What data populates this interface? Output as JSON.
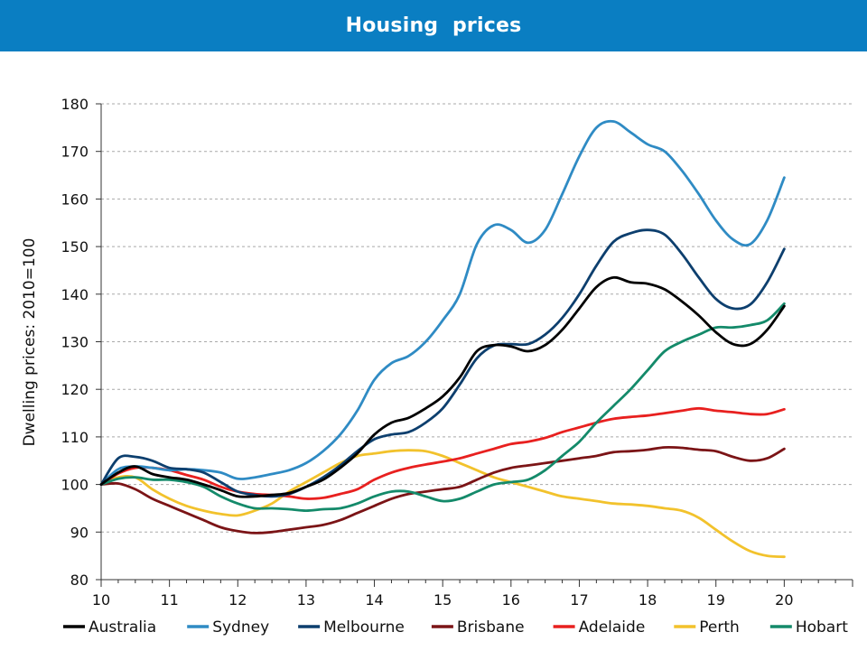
{
  "header": {
    "title": "Housing  prices"
  },
  "chart_data": {
    "type": "line",
    "title": "Housing  prices",
    "xlabel": "",
    "ylabel": "Dwelling prices: 2010=100",
    "xlim": [
      10,
      21
    ],
    "ylim": [
      80,
      180
    ],
    "x_ticks": [
      10,
      11,
      12,
      13,
      14,
      15,
      16,
      17,
      18,
      19,
      20
    ],
    "y_ticks": [
      80,
      90,
      100,
      110,
      120,
      130,
      140,
      150,
      160,
      170,
      180
    ],
    "grid": "horizontal dashed",
    "legend_position": "bottom",
    "series": [
      {
        "name": "Australia",
        "color": "#000000",
        "points": [
          [
            10,
            100
          ],
          [
            10.25,
            102.5
          ],
          [
            10.5,
            103.8
          ],
          [
            10.75,
            102.2
          ],
          [
            11,
            101.5
          ],
          [
            11.25,
            101
          ],
          [
            11.5,
            100
          ],
          [
            11.75,
            98.8
          ],
          [
            12,
            97.5
          ],
          [
            12.25,
            97.5
          ],
          [
            12.5,
            97.8
          ],
          [
            12.75,
            98.2
          ],
          [
            13,
            99.5
          ],
          [
            13.25,
            101
          ],
          [
            13.5,
            103.5
          ],
          [
            13.75,
            106.5
          ],
          [
            14,
            110.5
          ],
          [
            14.25,
            113
          ],
          [
            14.5,
            114
          ],
          [
            14.75,
            116
          ],
          [
            15,
            118.5
          ],
          [
            15.25,
            122.5
          ],
          [
            15.5,
            128
          ],
          [
            15.75,
            129.3
          ],
          [
            16,
            129
          ],
          [
            16.25,
            128
          ],
          [
            16.5,
            129.3
          ],
          [
            16.75,
            132.5
          ],
          [
            17,
            137
          ],
          [
            17.25,
            141.5
          ],
          [
            17.5,
            143.5
          ],
          [
            17.75,
            142.5
          ],
          [
            18,
            142.2
          ],
          [
            18.25,
            141
          ],
          [
            18.5,
            138.5
          ],
          [
            18.75,
            135.5
          ],
          [
            19,
            132
          ],
          [
            19.25,
            129.5
          ],
          [
            19.5,
            129.5
          ],
          [
            19.75,
            132.5
          ],
          [
            20,
            137.5
          ]
        ]
      },
      {
        "name": "Sydney",
        "color": "#2f8bc4",
        "points": [
          [
            10,
            100
          ],
          [
            10.25,
            103.2
          ],
          [
            10.5,
            103.8
          ],
          [
            10.75,
            103.5
          ],
          [
            11,
            103
          ],
          [
            11.25,
            103.2
          ],
          [
            11.5,
            103
          ],
          [
            11.75,
            102.5
          ],
          [
            12,
            101.2
          ],
          [
            12.25,
            101.5
          ],
          [
            12.5,
            102.2
          ],
          [
            12.75,
            103
          ],
          [
            13,
            104.5
          ],
          [
            13.25,
            107
          ],
          [
            13.5,
            110.5
          ],
          [
            13.75,
            115.5
          ],
          [
            14,
            122
          ],
          [
            14.25,
            125.5
          ],
          [
            14.5,
            127
          ],
          [
            14.75,
            130
          ],
          [
            15,
            134.5
          ],
          [
            15.25,
            140
          ],
          [
            15.5,
            150.5
          ],
          [
            15.75,
            154.5
          ],
          [
            16,
            153.5
          ],
          [
            16.25,
            150.8
          ],
          [
            16.5,
            153.5
          ],
          [
            16.75,
            161
          ],
          [
            17,
            169
          ],
          [
            17.25,
            175
          ],
          [
            17.5,
            176.3
          ],
          [
            17.75,
            174
          ],
          [
            18,
            171.5
          ],
          [
            18.25,
            170
          ],
          [
            18.5,
            166
          ],
          [
            18.75,
            161
          ],
          [
            19,
            155.5
          ],
          [
            19.25,
            151.5
          ],
          [
            19.5,
            150.5
          ],
          [
            19.75,
            155.5
          ],
          [
            20,
            164.5
          ]
        ]
      },
      {
        "name": "Melbourne",
        "color": "#0d3f6e",
        "points": [
          [
            10,
            100
          ],
          [
            10.25,
            105.5
          ],
          [
            10.5,
            105.8
          ],
          [
            10.75,
            105
          ],
          [
            11,
            103.5
          ],
          [
            11.25,
            103.2
          ],
          [
            11.5,
            102.5
          ],
          [
            11.75,
            100.5
          ],
          [
            12,
            98.5
          ],
          [
            12.25,
            97.8
          ],
          [
            12.5,
            97.5
          ],
          [
            12.75,
            98
          ],
          [
            13,
            99.5
          ],
          [
            13.25,
            101.5
          ],
          [
            13.5,
            104
          ],
          [
            13.75,
            107
          ],
          [
            14,
            109.5
          ],
          [
            14.25,
            110.5
          ],
          [
            14.5,
            111
          ],
          [
            14.75,
            113
          ],
          [
            15,
            116
          ],
          [
            15.25,
            121
          ],
          [
            15.5,
            126.5
          ],
          [
            15.75,
            129.2
          ],
          [
            16,
            129.5
          ],
          [
            16.25,
            129.5
          ],
          [
            16.5,
            131.5
          ],
          [
            16.75,
            135
          ],
          [
            17,
            140
          ],
          [
            17.25,
            146
          ],
          [
            17.5,
            151
          ],
          [
            17.75,
            152.8
          ],
          [
            18,
            153.5
          ],
          [
            18.25,
            152.5
          ],
          [
            18.5,
            148.5
          ],
          [
            18.75,
            143.5
          ],
          [
            19,
            139
          ],
          [
            19.25,
            137
          ],
          [
            19.5,
            137.8
          ],
          [
            19.75,
            142.5
          ],
          [
            20,
            149.5
          ]
        ]
      },
      {
        "name": "Brisbane",
        "color": "#7b1416",
        "points": [
          [
            10,
            100
          ],
          [
            10.25,
            100.2
          ],
          [
            10.5,
            99
          ],
          [
            10.75,
            97
          ],
          [
            11,
            95.5
          ],
          [
            11.25,
            94
          ],
          [
            11.5,
            92.5
          ],
          [
            11.75,
            91
          ],
          [
            12,
            90.2
          ],
          [
            12.25,
            89.8
          ],
          [
            12.5,
            90
          ],
          [
            12.75,
            90.5
          ],
          [
            13,
            91
          ],
          [
            13.25,
            91.5
          ],
          [
            13.5,
            92.5
          ],
          [
            13.75,
            94
          ],
          [
            14,
            95.5
          ],
          [
            14.25,
            97
          ],
          [
            14.5,
            98
          ],
          [
            14.75,
            98.5
          ],
          [
            15,
            99
          ],
          [
            15.25,
            99.5
          ],
          [
            15.5,
            101
          ],
          [
            15.75,
            102.5
          ],
          [
            16,
            103.5
          ],
          [
            16.25,
            104
          ],
          [
            16.5,
            104.5
          ],
          [
            16.75,
            105
          ],
          [
            17,
            105.5
          ],
          [
            17.25,
            106
          ],
          [
            17.5,
            106.8
          ],
          [
            17.75,
            107
          ],
          [
            18,
            107.3
          ],
          [
            18.25,
            107.8
          ],
          [
            18.5,
            107.7
          ],
          [
            18.75,
            107.3
          ],
          [
            19,
            107
          ],
          [
            19.25,
            105.8
          ],
          [
            19.5,
            105
          ],
          [
            19.75,
            105.5
          ],
          [
            20,
            107.5
          ]
        ]
      },
      {
        "name": "Adelaide",
        "color": "#e8201f",
        "points": [
          [
            10,
            100
          ],
          [
            10.25,
            102.3
          ],
          [
            10.5,
            103.5
          ],
          [
            10.75,
            103.5
          ],
          [
            11,
            103
          ],
          [
            11.25,
            102
          ],
          [
            11.5,
            101
          ],
          [
            11.75,
            99.5
          ],
          [
            12,
            98.5
          ],
          [
            12.25,
            98
          ],
          [
            12.5,
            97.8
          ],
          [
            12.75,
            97.5
          ],
          [
            13,
            97
          ],
          [
            13.25,
            97.2
          ],
          [
            13.5,
            98
          ],
          [
            13.75,
            99
          ],
          [
            14,
            101
          ],
          [
            14.25,
            102.5
          ],
          [
            14.5,
            103.5
          ],
          [
            14.75,
            104.2
          ],
          [
            15,
            104.8
          ],
          [
            15.25,
            105.5
          ],
          [
            15.5,
            106.5
          ],
          [
            15.75,
            107.5
          ],
          [
            16,
            108.5
          ],
          [
            16.25,
            109
          ],
          [
            16.5,
            109.8
          ],
          [
            16.75,
            111
          ],
          [
            17,
            112
          ],
          [
            17.25,
            113
          ],
          [
            17.5,
            113.8
          ],
          [
            17.75,
            114.2
          ],
          [
            18,
            114.5
          ],
          [
            18.25,
            115
          ],
          [
            18.5,
            115.5
          ],
          [
            18.75,
            116
          ],
          [
            19,
            115.5
          ],
          [
            19.25,
            115.2
          ],
          [
            19.5,
            114.8
          ],
          [
            19.75,
            114.8
          ],
          [
            20,
            115.8
          ]
        ]
      },
      {
        "name": "Perth",
        "color": "#f2c22c",
        "points": [
          [
            10,
            100
          ],
          [
            10.25,
            101.5
          ],
          [
            10.5,
            101.5
          ],
          [
            10.75,
            99
          ],
          [
            11,
            97
          ],
          [
            11.25,
            95.5
          ],
          [
            11.5,
            94.5
          ],
          [
            11.75,
            93.8
          ],
          [
            12,
            93.5
          ],
          [
            12.25,
            94.5
          ],
          [
            12.5,
            96
          ],
          [
            12.75,
            98.5
          ],
          [
            13,
            100.5
          ],
          [
            13.25,
            102.5
          ],
          [
            13.5,
            104.5
          ],
          [
            13.75,
            106
          ],
          [
            14,
            106.5
          ],
          [
            14.25,
            107
          ],
          [
            14.5,
            107.2
          ],
          [
            14.75,
            107
          ],
          [
            15,
            106
          ],
          [
            15.25,
            104.5
          ],
          [
            15.5,
            103
          ],
          [
            15.75,
            101.5
          ],
          [
            16,
            100.5
          ],
          [
            16.25,
            99.5
          ],
          [
            16.5,
            98.5
          ],
          [
            16.75,
            97.5
          ],
          [
            17,
            97
          ],
          [
            17.25,
            96.5
          ],
          [
            17.5,
            96
          ],
          [
            17.75,
            95.8
          ],
          [
            18,
            95.5
          ],
          [
            18.25,
            95
          ],
          [
            18.5,
            94.5
          ],
          [
            18.75,
            93
          ],
          [
            19,
            90.5
          ],
          [
            19.25,
            88
          ],
          [
            19.5,
            86
          ],
          [
            19.75,
            85
          ],
          [
            20,
            84.8
          ]
        ]
      },
      {
        "name": "Hobart",
        "color": "#148a6a",
        "points": [
          [
            10,
            100
          ],
          [
            10.25,
            101.2
          ],
          [
            10.5,
            101.5
          ],
          [
            10.75,
            101
          ],
          [
            11,
            101
          ],
          [
            11.25,
            100.5
          ],
          [
            11.5,
            99.5
          ],
          [
            11.75,
            97.5
          ],
          [
            12,
            96
          ],
          [
            12.25,
            95
          ],
          [
            12.5,
            95
          ],
          [
            12.75,
            94.8
          ],
          [
            13,
            94.5
          ],
          [
            13.25,
            94.8
          ],
          [
            13.5,
            95
          ],
          [
            13.75,
            96
          ],
          [
            14,
            97.5
          ],
          [
            14.25,
            98.5
          ],
          [
            14.5,
            98.5
          ],
          [
            14.75,
            97.5
          ],
          [
            15,
            96.5
          ],
          [
            15.25,
            97
          ],
          [
            15.5,
            98.5
          ],
          [
            15.75,
            100
          ],
          [
            16,
            100.5
          ],
          [
            16.25,
            101
          ],
          [
            16.5,
            103
          ],
          [
            16.75,
            106
          ],
          [
            17,
            109
          ],
          [
            17.25,
            113
          ],
          [
            17.5,
            116.5
          ],
          [
            17.75,
            120
          ],
          [
            18,
            124
          ],
          [
            18.25,
            128
          ],
          [
            18.5,
            130
          ],
          [
            18.75,
            131.5
          ],
          [
            19,
            133
          ],
          [
            19.25,
            133
          ],
          [
            19.5,
            133.5
          ],
          [
            19.75,
            134.5
          ],
          [
            20,
            138
          ]
        ]
      }
    ]
  }
}
